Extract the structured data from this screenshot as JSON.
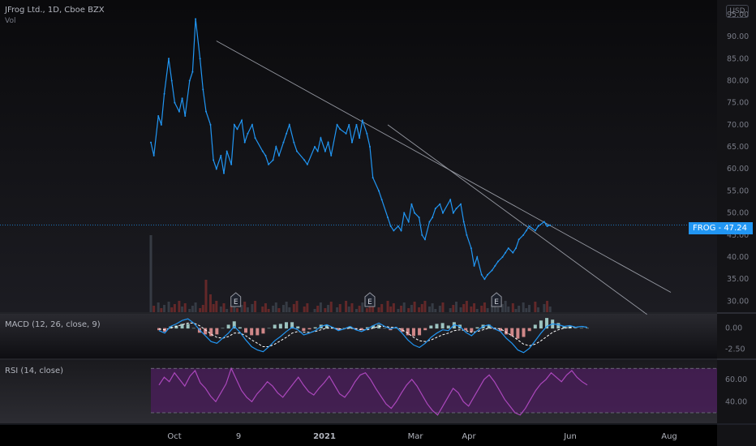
{
  "header": {
    "title": "JFrog Ltd., 1D, Cboe BZX",
    "subtitle": "Vol",
    "currency": "USD"
  },
  "price_label": {
    "symbol": "FROG",
    "value": "47.24"
  },
  "colors": {
    "background": "#000000",
    "price_line": "#2196f3",
    "macd_line": "#2196f3",
    "signal_line": "#ffffff",
    "hist_pos": "#26a69a",
    "rsi_line": "#ab47bc",
    "rsi_band": "#4a1e5a",
    "trendline": "#9598a1"
  },
  "macd_label": "MACD (12, 26, close, 9)",
  "rsi_label": "RSI (14, close)",
  "earnings_marker": "E",
  "chart_data": [
    {
      "type": "line",
      "title": "JFrog Ltd., 1D, Cboe BZX",
      "x_ticks": [
        "Oct",
        "9",
        "2021",
        "Mar",
        "Apr",
        "Jun",
        "Aug"
      ],
      "y_ticks": [
        "30.00",
        "35.00",
        "40.00",
        "45.00",
        "50.00",
        "55.00",
        "60.00",
        "65.00",
        "70.00",
        "75.00",
        "80.00",
        "85.00",
        "90.00",
        "95.00"
      ],
      "ylim": [
        27.5,
        97
      ],
      "last_price": 47.24,
      "series": [
        {
          "name": "FROG",
          "x": [
            "2020-09-16",
            "2020-09-18",
            "2020-09-21",
            "2020-09-23",
            "2020-09-25",
            "2020-09-28",
            "2020-09-30",
            "2020-10-02",
            "2020-10-05",
            "2020-10-07",
            "2020-10-09",
            "2020-10-12",
            "2020-10-14",
            "2020-10-16",
            "2020-10-19",
            "2020-10-21",
            "2020-10-23",
            "2020-10-26",
            "2020-10-28",
            "2020-10-30",
            "2020-11-02",
            "2020-11-04",
            "2020-11-06",
            "2020-11-09",
            "2020-11-11",
            "2020-11-13",
            "2020-11-16",
            "2020-11-18",
            "2020-11-20",
            "2020-11-23",
            "2020-11-25",
            "2020-11-30",
            "2020-12-02",
            "2020-12-04",
            "2020-12-07",
            "2020-12-09",
            "2020-12-11",
            "2020-12-14",
            "2020-12-16",
            "2020-12-18",
            "2020-12-21",
            "2020-12-23",
            "2020-12-28",
            "2020-12-30",
            "2021-01-04",
            "2021-01-06",
            "2021-01-08",
            "2021-01-11",
            "2021-01-13",
            "2021-01-15",
            "2021-01-19",
            "2021-01-21",
            "2021-01-25",
            "2021-01-27",
            "2021-01-29",
            "2021-02-01",
            "2021-02-03",
            "2021-02-05",
            "2021-02-08",
            "2021-02-10",
            "2021-02-12",
            "2021-02-16",
            "2021-02-18",
            "2021-02-22",
            "2021-02-24",
            "2021-02-26",
            "2021-03-01",
            "2021-03-03",
            "2021-03-05",
            "2021-03-08",
            "2021-03-10",
            "2021-03-12",
            "2021-03-15",
            "2021-03-17",
            "2021-03-19",
            "2021-03-22",
            "2021-03-24",
            "2021-03-26",
            "2021-03-29",
            "2021-03-31",
            "2021-04-05",
            "2021-04-07",
            "2021-04-09",
            "2021-04-12",
            "2021-04-14",
            "2021-04-16",
            "2021-04-19",
            "2021-04-21",
            "2021-04-23",
            "2021-04-26",
            "2021-04-28",
            "2021-04-30",
            "2021-05-03",
            "2021-05-05",
            "2021-05-07",
            "2021-05-10",
            "2021-05-12",
            "2021-05-14",
            "2021-05-17",
            "2021-05-19",
            "2021-05-21",
            "2021-05-24",
            "2021-05-26",
            "2021-05-28",
            "2021-06-01",
            "2021-06-03",
            "2021-06-07",
            "2021-06-09",
            "2021-06-11"
          ],
          "values": [
            66,
            63,
            72,
            70,
            77,
            85,
            80,
            75,
            73,
            76,
            72,
            80,
            82,
            94,
            85,
            78,
            73,
            70,
            62,
            60,
            63,
            59,
            64,
            61,
            70,
            69,
            71,
            66,
            68,
            70,
            67,
            64,
            63,
            61,
            62,
            65,
            63,
            66,
            68,
            70,
            66,
            64,
            62,
            61,
            65,
            64,
            67,
            64,
            66,
            63,
            70,
            69,
            68,
            70,
            66,
            70,
            67,
            71,
            68,
            65,
            58,
            55,
            53,
            49,
            47,
            46,
            47,
            46,
            50,
            48,
            52,
            50,
            49,
            45,
            44,
            48,
            49,
            51,
            52,
            50,
            53,
            50,
            51,
            52,
            48,
            45,
            42,
            38,
            40,
            36,
            35,
            36,
            37,
            38,
            39,
            40,
            41,
            42,
            41,
            42,
            44,
            45,
            46,
            47,
            46,
            47,
            48,
            47,
            47.24
          ]
        }
      ],
      "trendlines": [
        {
          "from": [
            "2020-10-30",
            89
          ],
          "to": [
            "2021-08-31",
            32
          ]
        },
        {
          "from": [
            "2021-02-22",
            70
          ],
          "to": [
            "2021-08-15",
            27
          ]
        }
      ],
      "earnings_dates": [
        "2020-11-12",
        "2021-02-10",
        "2021-05-06"
      ]
    },
    {
      "type": "bar",
      "title": "Vol",
      "note": "volume histogram"
    },
    {
      "type": "line",
      "title": "MACD (12, 26, close, 9)",
      "y_ticks": [
        "-2.50",
        "0.00"
      ],
      "ylim": [
        -3.5,
        1.5
      ],
      "series": [
        {
          "name": "MACD",
          "values": [
            -0.3,
            -0.6,
            0.2,
            0.5,
            0.9,
            1.1,
            0.6,
            -0.2,
            -0.9,
            -1.6,
            -1.8,
            -1.2,
            -0.6,
            0.2,
            -0.5,
            -1.4,
            -2.2,
            -2.6,
            -2.8,
            -2.2,
            -1.5,
            -1.0,
            -0.4,
            0.1,
            -0.2,
            -0.8,
            -0.6,
            -0.3,
            0.2,
            0.4,
            0.1,
            -0.3,
            -0.1,
            0.2,
            -0.2,
            -0.4,
            -0.1,
            0.3,
            0.6,
            0.2,
            -0.1,
            0.1,
            -0.6,
            -1.4,
            -2.0,
            -2.3,
            -1.8,
            -1.1,
            -0.6,
            -0.2,
            -0.3,
            0.4,
            0.2,
            -0.5,
            -0.9,
            -0.3,
            0.2,
            0.4,
            -0.1,
            -0.4,
            -1.2,
            -1.8,
            -2.6,
            -2.9,
            -2.4,
            -1.5,
            -0.6,
            0.2,
            0.5,
            0.4,
            0.2,
            0.3,
            0.1,
            0.2,
            0.1
          ]
        },
        {
          "name": "Signal",
          "values": [
            -0.1,
            -0.2,
            0.0,
            0.2,
            0.4,
            0.6,
            0.6,
            0.3,
            -0.2,
            -0.7,
            -1.1,
            -1.2,
            -1.0,
            -0.6,
            -0.6,
            -0.9,
            -1.4,
            -1.8,
            -2.2,
            -2.2,
            -1.9,
            -1.5,
            -1.1,
            -0.6,
            -0.4,
            -0.5,
            -0.5,
            -0.4,
            -0.2,
            0.0,
            0.0,
            -0.1,
            -0.1,
            0.0,
            -0.1,
            -0.2,
            -0.2,
            0.0,
            0.2,
            0.2,
            0.1,
            0.1,
            -0.2,
            -0.6,
            -1.1,
            -1.5,
            -1.6,
            -1.4,
            -1.1,
            -0.8,
            -0.6,
            -0.3,
            -0.2,
            -0.3,
            -0.5,
            -0.4,
            -0.2,
            0.0,
            0.0,
            -0.1,
            -0.5,
            -0.9,
            -1.4,
            -1.9,
            -2.1,
            -1.9,
            -1.5,
            -1.0,
            -0.5,
            -0.2,
            0.0,
            0.1,
            0.1,
            0.2,
            0.1
          ]
        }
      ]
    },
    {
      "type": "line",
      "title": "RSI (14, close)",
      "y_ticks": [
        "40.00",
        "60.00"
      ],
      "ylim": [
        22,
        76
      ],
      "bands": [
        30,
        70
      ],
      "series": [
        {
          "name": "RSI",
          "values": [
            55,
            62,
            58,
            66,
            60,
            54,
            63,
            68,
            57,
            52,
            45,
            40,
            48,
            56,
            70,
            60,
            50,
            44,
            40,
            47,
            52,
            58,
            54,
            48,
            44,
            50,
            56,
            62,
            55,
            49,
            46,
            52,
            57,
            63,
            55,
            47,
            44,
            50,
            58,
            64,
            66,
            60,
            52,
            45,
            38,
            34,
            40,
            48,
            55,
            60,
            54,
            46,
            38,
            32,
            28,
            36,
            44,
            52,
            48,
            40,
            36,
            44,
            52,
            60,
            64,
            58,
            50,
            42,
            36,
            30,
            28,
            34,
            42,
            50,
            56,
            60,
            66,
            62,
            58,
            64,
            68,
            62,
            58,
            55
          ]
        }
      ]
    }
  ]
}
